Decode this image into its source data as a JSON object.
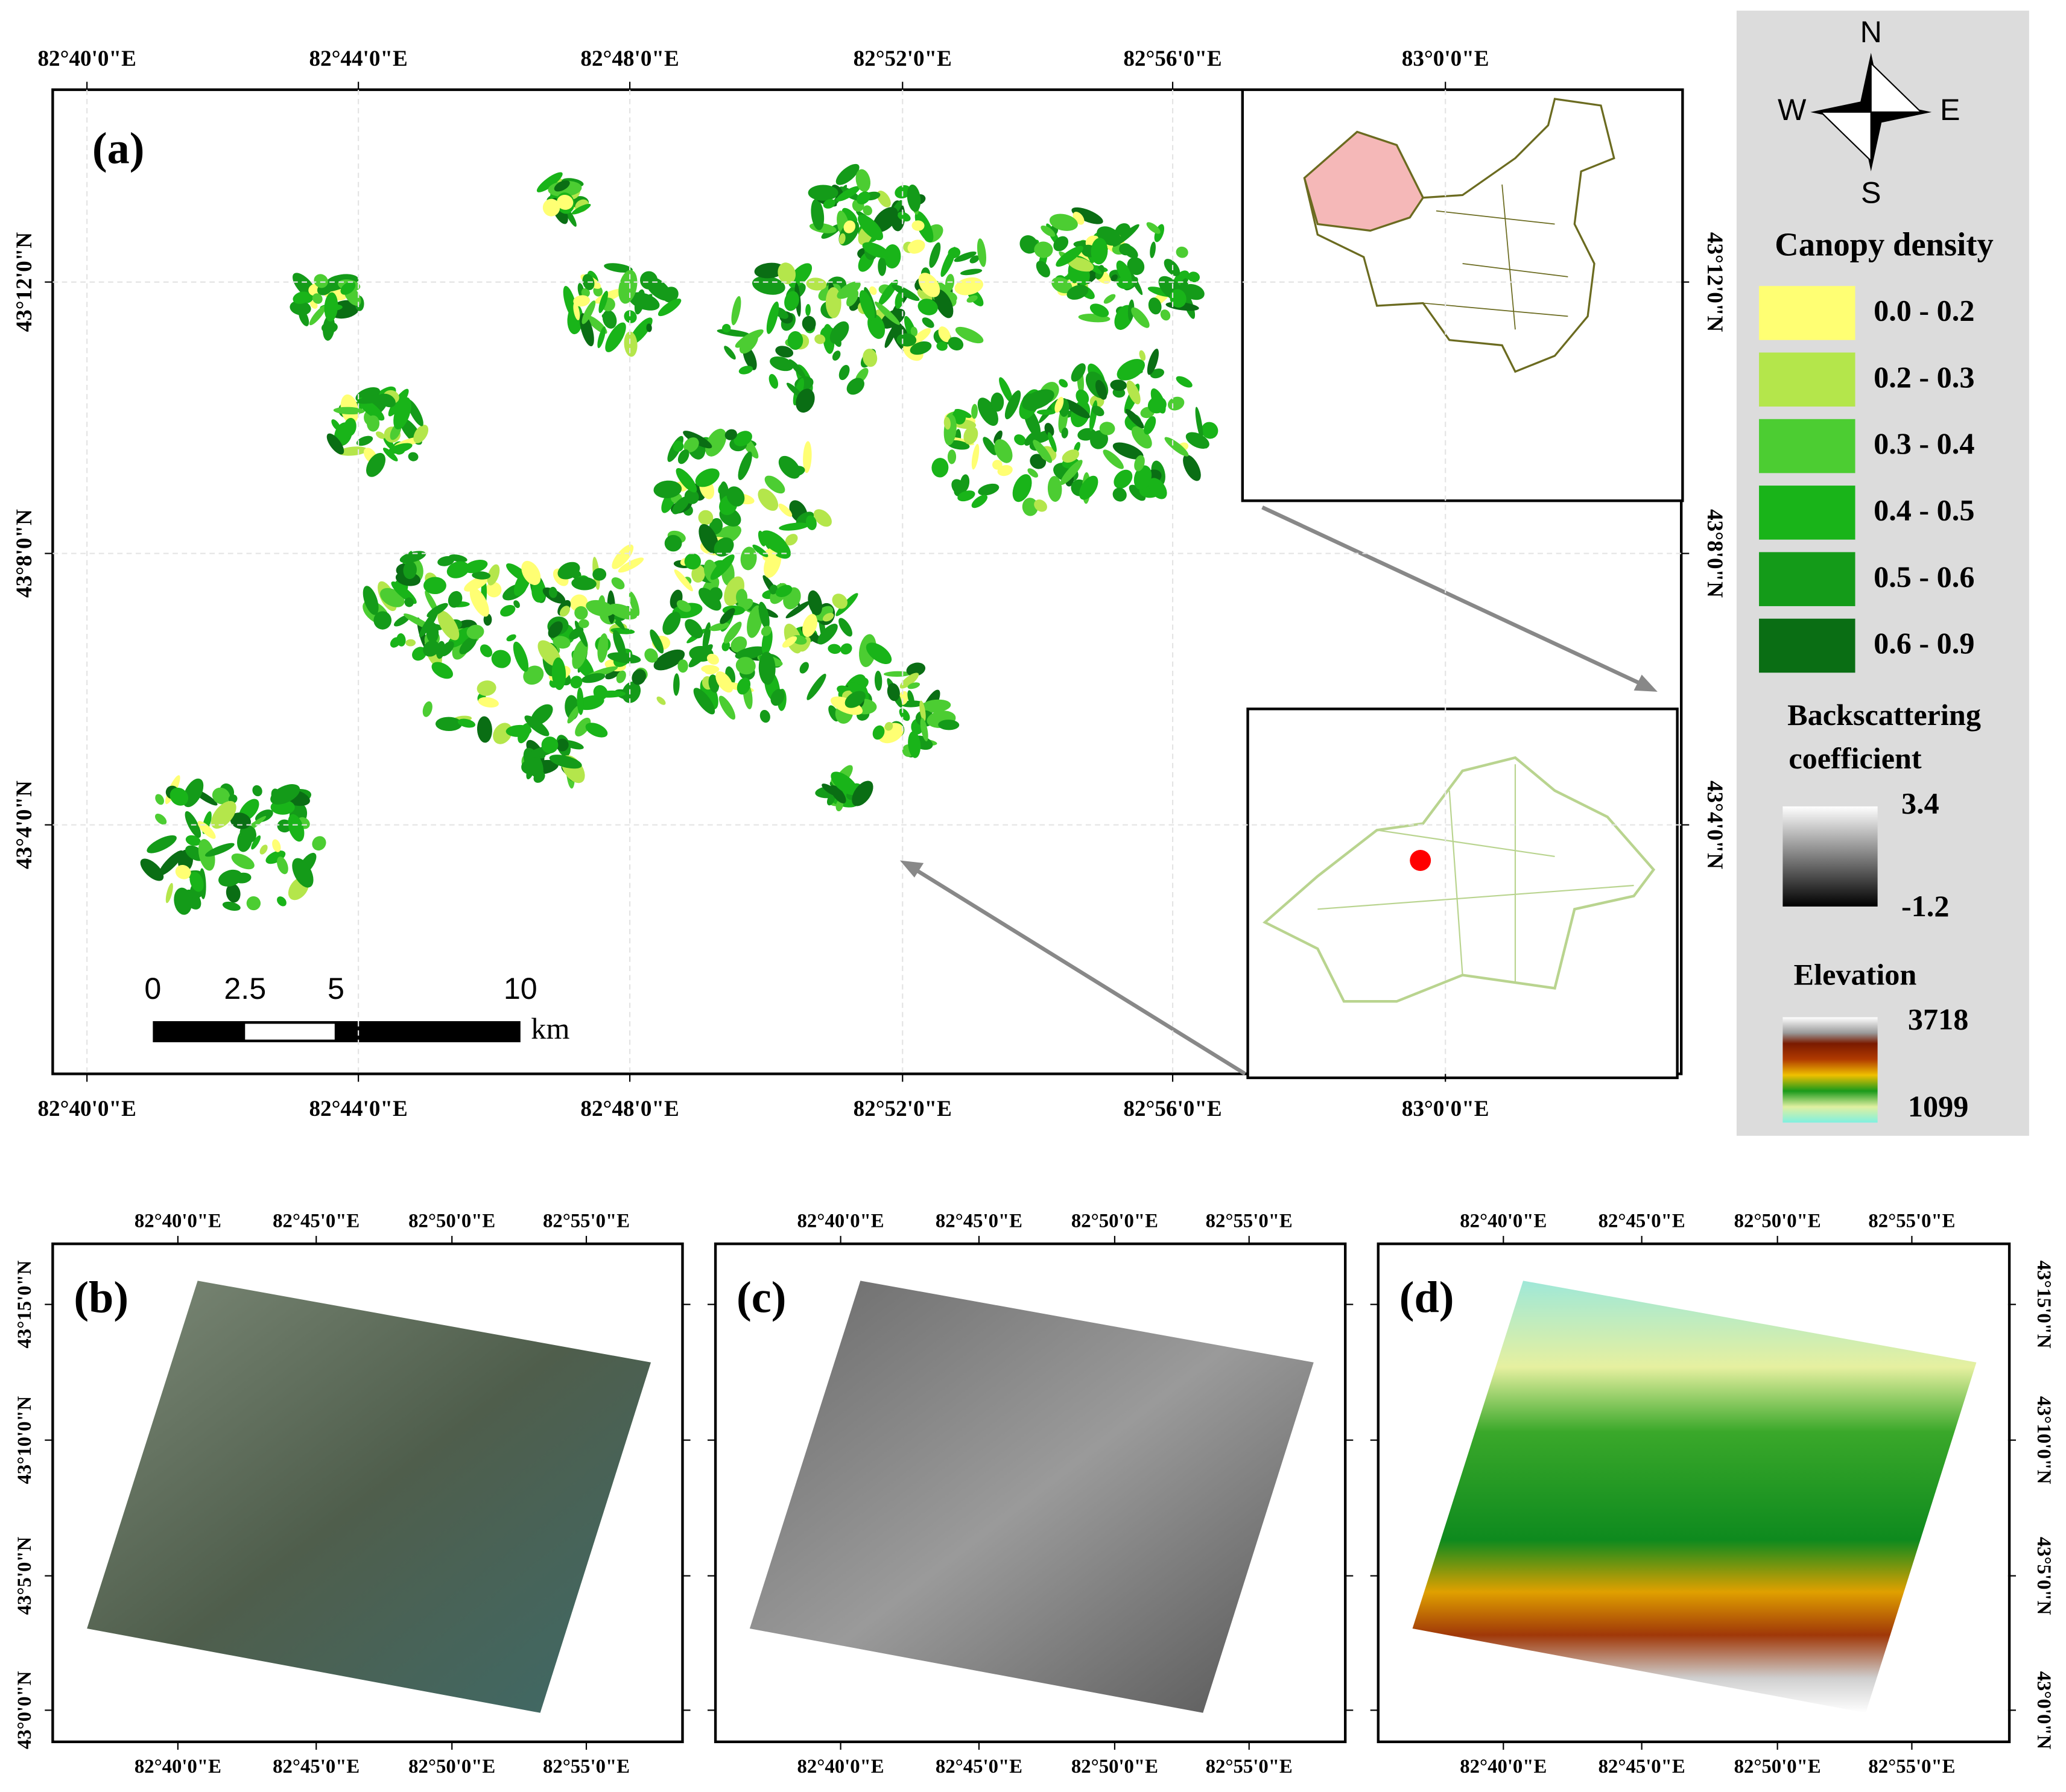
{
  "panel_a": {
    "label": "(a)",
    "lon_labels": [
      "82°40'0\"E",
      "82°44'0\"E",
      "82°48'0\"E",
      "82°52'0\"E",
      "82°56'0\"E",
      "83°0'0\"E"
    ],
    "lat_labels": [
      "43°12'0\"N",
      "43°8'0\"N",
      "43°4'0\"N"
    ],
    "scale_bar": {
      "labels": [
        "0",
        "2.5",
        "5",
        "10"
      ],
      "unit": "km"
    }
  },
  "legend": {
    "compass": {
      "north": "N",
      "south": "S",
      "west": "W",
      "east": "E"
    },
    "canopy_title": "Canopy density",
    "canopy_classes": [
      {
        "label": "0.0 - 0.2",
        "color": "#ffff73"
      },
      {
        "label": "0.2 - 0.3",
        "color": "#b4e64b"
      },
      {
        "label": "0.3 - 0.4",
        "color": "#4ccd32"
      },
      {
        "label": "0.4 - 0.5",
        "color": "#19b419"
      },
      {
        "label": "0.5 - 0.6",
        "color": "#149b19"
      },
      {
        "label": "0.6 - 0.9",
        "color": "#0a6e14"
      }
    ],
    "backscatter_title": [
      "Backscattering",
      "coefficient"
    ],
    "backscatter_max": "3.4",
    "backscatter_min": "-1.2",
    "elevation_title": "Elevation",
    "elevation_max": "3718",
    "elevation_min": "1099"
  },
  "panels_bcd": {
    "labels": [
      "(b)",
      "(c)",
      "(d)"
    ],
    "lon_labels": [
      "82°40'0\"E",
      "82°45'0\"E",
      "82°50'0\"E",
      "82°55'0\"E"
    ],
    "lat_labels": [
      "43°15'0\"N",
      "43°10'0\"N",
      "43°5'0\"N",
      "43°0'0\"N"
    ]
  }
}
